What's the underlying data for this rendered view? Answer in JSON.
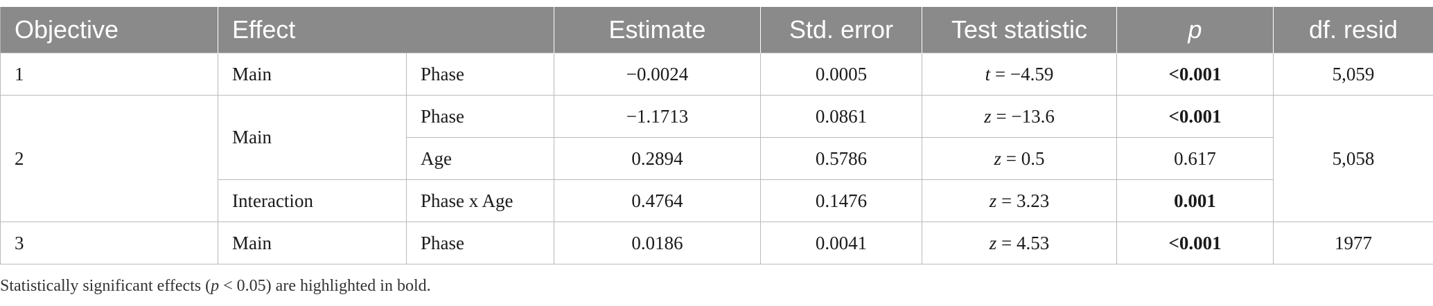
{
  "table": {
    "headers": {
      "objective": "Objective",
      "effect": "Effect",
      "estimate": "Estimate",
      "std_error": "Std. error",
      "test_statistic": "Test statistic",
      "p": "p",
      "df_resid": "df. resid"
    },
    "rows": [
      {
        "objective": "1",
        "effect": "Main",
        "term": "Phase",
        "estimate": "−0.0024",
        "std_error": "0.0005",
        "stat_symbol": "t",
        "stat_value": " = −4.59",
        "p": "<0.001",
        "p_bold": true,
        "df_resid": "5,059"
      },
      {
        "objective": "2",
        "effect": "Main",
        "term": "Phase",
        "estimate": "−1.1713",
        "std_error": "0.0861",
        "stat_symbol": "z",
        "stat_value": " = −13.6",
        "p": "<0.001",
        "p_bold": true,
        "df_resid": "5,058"
      },
      {
        "term": "Age",
        "estimate": "0.2894",
        "std_error": "0.5786",
        "stat_symbol": "z",
        "stat_value": " = 0.5",
        "p": "0.617",
        "p_bold": false
      },
      {
        "effect": "Interaction",
        "term": "Phase x Age",
        "estimate": "0.4764",
        "std_error": "0.1476",
        "stat_symbol": "z",
        "stat_value": " = 3.23",
        "p": "0.001",
        "p_bold": true
      },
      {
        "objective": "3",
        "effect": "Main",
        "term": "Phase",
        "estimate": "0.0186",
        "std_error": "0.0041",
        "stat_symbol": "z",
        "stat_value": " = 4.53",
        "p": "<0.001",
        "p_bold": true,
        "df_resid": "1977"
      }
    ]
  },
  "footnote": {
    "before": "Statistically significant effects (",
    "symbol": "p",
    "after": " < 0.05) are highlighted in bold."
  },
  "colors": {
    "header_bg": "#8a8a8a",
    "header_text": "#ffffff",
    "grid": "#b9b9b9"
  }
}
